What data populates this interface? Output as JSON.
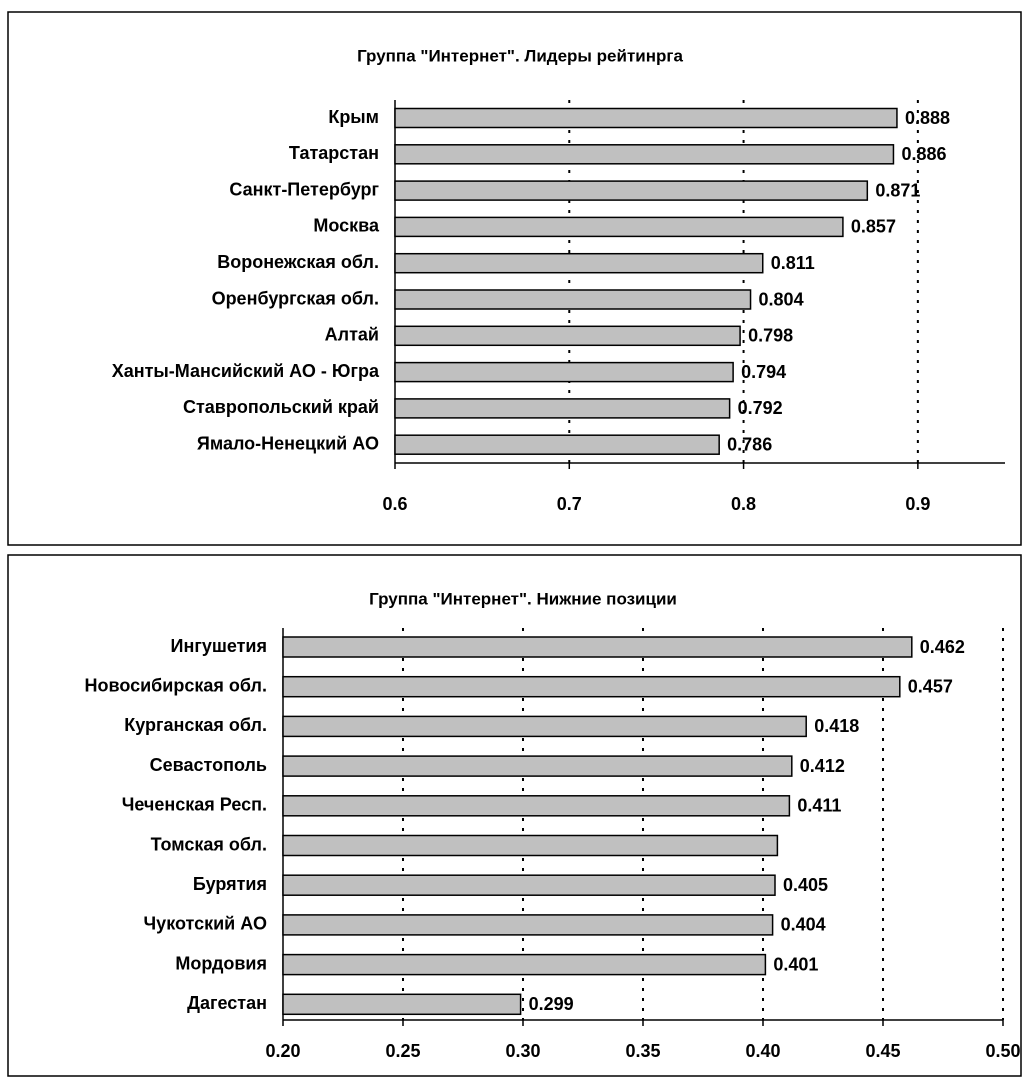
{
  "chart_data": [
    {
      "type": "bar",
      "orientation": "horizontal",
      "title": "Группа \"Интернет\". Лидеры рейтинрга",
      "categories": [
        "Крым",
        "Татарстан",
        "Санкт-Петербург",
        "Москва",
        "Воронежская обл.",
        "Оренбургская обл.",
        "Алтай",
        "Ханты-Мансийский АО - Югра",
        "Ставропольский край",
        "Ямало-Ненецкий АО"
      ],
      "values": [
        0.888,
        0.886,
        0.871,
        0.857,
        0.811,
        0.804,
        0.798,
        0.794,
        0.792,
        0.786
      ],
      "color": "#c0c0c0",
      "xlim": [
        0.6,
        0.95
      ],
      "xticks": [
        0.6,
        0.7,
        0.8,
        0.9
      ],
      "grid": true
    },
    {
      "type": "bar",
      "orientation": "horizontal",
      "title": "Группа \"Интернет\". Нижние позиции",
      "categories": [
        "Ингушетия",
        "Новосибирская обл.",
        "Курганская обл.",
        "Севастополь",
        "Чеченская Респ.",
        "Томская обл.",
        "Бурятия",
        "Чукотский АО",
        "Мордовия",
        "Дагестан"
      ],
      "values": [
        0.462,
        0.457,
        0.418,
        0.412,
        0.411,
        0.406,
        0.405,
        0.404,
        0.401,
        0.299
      ],
      "value_labels": [
        "0.462",
        "0.457",
        "0.418",
        "0.412",
        "0.411",
        null,
        "0.405",
        "0.404",
        "0.401",
        "0.299"
      ],
      "color": "#c0c0c0",
      "xlim": [
        0.2,
        0.5
      ],
      "xticks": [
        {
          "value": 0.2,
          "label": "0.20"
        },
        {
          "value": 0.25,
          "label": "0.25"
        },
        {
          "value": 0.3,
          "label": "0.30"
        },
        {
          "value": 0.35,
          "label": "0.35"
        },
        {
          "value": 0.4,
          "label": "0.40"
        },
        {
          "value": 0.45,
          "label": "0.45"
        },
        {
          "value": 0.5,
          "label": "0.50"
        }
      ],
      "grid": true
    }
  ]
}
